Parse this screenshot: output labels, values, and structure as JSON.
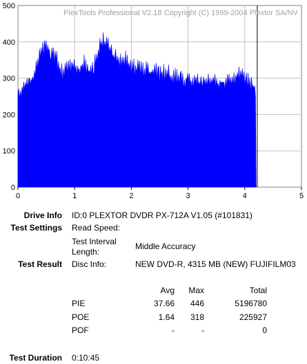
{
  "watermark": "PlexTools Professional V2.18 Copyright (C) 1999-2004 Plextor SA/NV",
  "chart_data": {
    "type": "area",
    "title": "",
    "xlabel": "",
    "ylabel": "",
    "xlim": [
      0,
      5
    ],
    "ylim": [
      0,
      500
    ],
    "xticks": [
      "0",
      "1",
      "2",
      "3",
      "4",
      "5"
    ],
    "yticks": [
      "0",
      "100",
      "200",
      "300",
      "400",
      "500"
    ],
    "grid": true,
    "fill_color": "#0000ff",
    "end_marker_x": 4.22,
    "series": [
      {
        "x": [
          0.0,
          0.05,
          0.1,
          0.15,
          0.2,
          0.25,
          0.3,
          0.35,
          0.4,
          0.45,
          0.5,
          0.55,
          0.6,
          0.65,
          0.7,
          0.75,
          0.8,
          0.85,
          0.9,
          0.95,
          1.0,
          1.05,
          1.1,
          1.15,
          1.2,
          1.25,
          1.3,
          1.35,
          1.4,
          1.45,
          1.5,
          1.55,
          1.6,
          1.65,
          1.7,
          1.75,
          1.8,
          1.85,
          1.9,
          1.95,
          2.0,
          2.05,
          2.1,
          2.15,
          2.2,
          2.25,
          2.3,
          2.35,
          2.4,
          2.45,
          2.5,
          2.55,
          2.6,
          2.65,
          2.7,
          2.75,
          2.8,
          2.85,
          2.9,
          2.95,
          3.0,
          3.05,
          3.1,
          3.15,
          3.2,
          3.25,
          3.3,
          3.35,
          3.4,
          3.45,
          3.5,
          3.55,
          3.6,
          3.65,
          3.7,
          3.75,
          3.8,
          3.85,
          3.9,
          3.95,
          4.0,
          4.05,
          4.1,
          4.15,
          4.2
        ],
        "values": [
          285,
          275,
          290,
          305,
          300,
          310,
          330,
          350,
          380,
          395,
          400,
          390,
          385,
          370,
          360,
          340,
          325,
          340,
          355,
          345,
          350,
          335,
          340,
          355,
          345,
          330,
          340,
          350,
          375,
          400,
          420,
          410,
          405,
          380,
          370,
          375,
          365,
          360,
          370,
          355,
          345,
          340,
          350,
          345,
          335,
          340,
          330,
          325,
          340,
          330,
          320,
          330,
          320,
          325,
          315,
          310,
          320,
          305,
          315,
          300,
          315,
          305,
          300,
          310,
          300,
          305,
          295,
          300,
          310,
          305,
          295,
          300,
          305,
          290,
          300,
          310,
          305,
          315,
          320,
          325,
          315,
          305,
          300,
          290,
          280
        ]
      }
    ]
  },
  "info": {
    "drive_info_label": "Drive Info",
    "drive_info_value": "ID:0 PLEXTOR DVDR PX-712A V1.05 (#101831)",
    "test_settings_label": "Test Settings",
    "read_speed_label": "Read Speed:",
    "interval_label_1": "Test Interval",
    "interval_label_2": "Length:",
    "interval_value": "Middle Accuracy",
    "test_result_label": "Test Result",
    "disc_info_label": "Disc Info:",
    "disc_info_value": "NEW DVD-R, 4315 MB (NEW) FUJIFILM03",
    "test_duration_label": "Test Duration",
    "test_duration_value": "0:10:45"
  },
  "results": {
    "headers": {
      "avg": "Avg",
      "max": "Max",
      "total": "Total"
    },
    "rows": [
      {
        "name": "PIE",
        "avg": "37.66",
        "max": "446",
        "total": "5196780"
      },
      {
        "name": "POE",
        "avg": "1.64",
        "max": "318",
        "total": "225927"
      },
      {
        "name": "POF",
        "avg": "-",
        "max": "-",
        "total": "0"
      }
    ]
  }
}
